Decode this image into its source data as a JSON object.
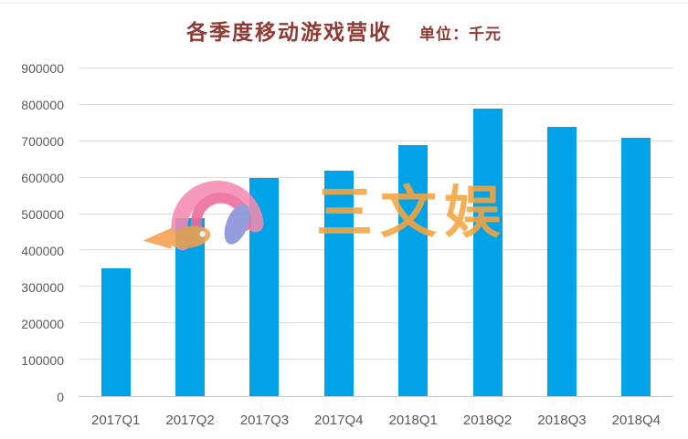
{
  "chart_data": {
    "type": "bar",
    "title": "各季度移动游戏营收",
    "unit_label": "单位：千元",
    "categories": [
      "2017Q1",
      "2017Q2",
      "2017Q3",
      "2017Q4",
      "2018Q1",
      "2018Q2",
      "2018Q3",
      "2018Q4"
    ],
    "values": [
      350000,
      490000,
      600000,
      620000,
      690000,
      790000,
      740000,
      710000
    ],
    "series_name": "移动游戏营收",
    "xlabel": "",
    "ylabel": "",
    "ylim": [
      0,
      900000
    ],
    "y_tick_step": 100000,
    "y_ticks": [
      0,
      100000,
      200000,
      300000,
      400000,
      500000,
      600000,
      700000,
      800000,
      900000
    ],
    "grid": true,
    "legend": "none",
    "bar_color": "#00a2e8",
    "title_color": "#8e3b33",
    "axis_label_color": "#595959",
    "gridline_color": "#dcdcdc",
    "watermark": {
      "text": "三文娱",
      "color": "#f6a53e",
      "logo": "fish-logo"
    }
  }
}
